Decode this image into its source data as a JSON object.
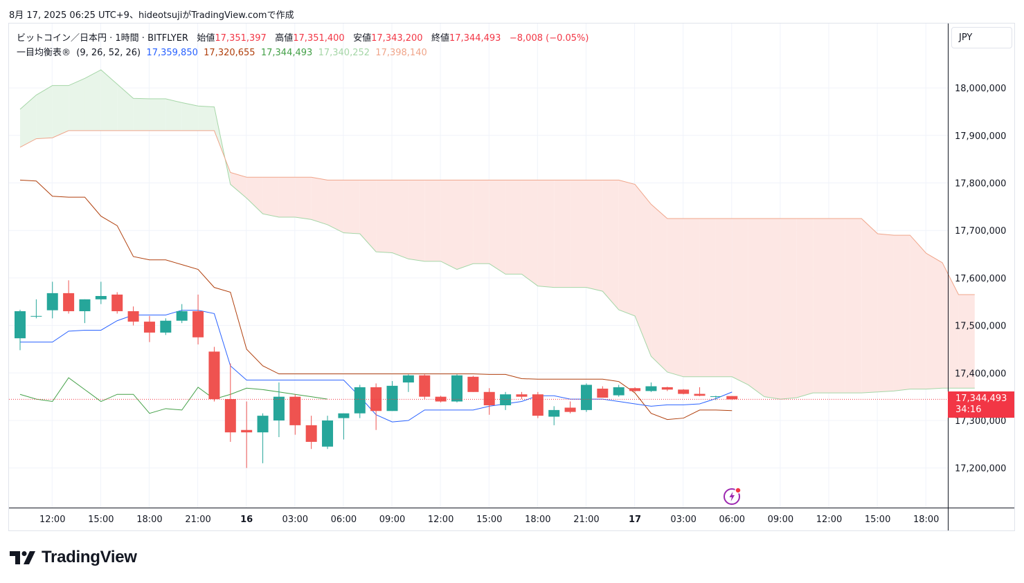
{
  "header": {
    "timestamp": "8月 17, 2025 06:25 UTC+9、hideotsujiがTradingView.comで作成"
  },
  "legend": {
    "symbol": "ビットコイン／日本円 · 1時間 · BITFLYER",
    "open_label": "始値",
    "open": "17,351,397",
    "high_label": "高値",
    "high": "17,351,400",
    "low_label": "安値",
    "low": "17,343,200",
    "close_label": "終値",
    "close": "17,344,493",
    "change": "−8,008 (−0.05%)",
    "indicator": "一目均衡表",
    "indicator_params": "(9, 26, 52, 26)",
    "conversion": "17,359,850",
    "base": "17,320,655",
    "lagging": "17,344,493",
    "span_a": "17,340,252",
    "span_b": "17,398,140"
  },
  "price_axis": {
    "currency": "JPY",
    "last_price": "17,344,493",
    "countdown": "34:16"
  },
  "brand": {
    "name": "TradingView"
  },
  "colors": {
    "up": "#26a69a",
    "down": "#ef5350",
    "conversion": "#2962ff",
    "base": "#b03f0c",
    "lagging": "#43a047",
    "span_a": "#a5d6a7",
    "span_b": "#f0a58a",
    "cloud_up": "#e8f5e9",
    "cloud_down": "#fde7e4"
  },
  "chart_data": {
    "type": "candlestick",
    "y_ticks": [
      17200000,
      17300000,
      17400000,
      17500000,
      17600000,
      17700000,
      17800000,
      17900000,
      18000000
    ],
    "x_ticks": [
      {
        "label": "12:00",
        "i": 2
      },
      {
        "label": "15:00",
        "i": 5
      },
      {
        "label": "18:00",
        "i": 8
      },
      {
        "label": "21:00",
        "i": 11
      },
      {
        "label": "16",
        "i": 14,
        "bold": true
      },
      {
        "label": "03:00",
        "i": 17
      },
      {
        "label": "06:00",
        "i": 20
      },
      {
        "label": "09:00",
        "i": 23
      },
      {
        "label": "12:00",
        "i": 26
      },
      {
        "label": "15:00",
        "i": 29
      },
      {
        "label": "18:00",
        "i": 32
      },
      {
        "label": "21:00",
        "i": 35
      },
      {
        "label": "17",
        "i": 38,
        "bold": true
      },
      {
        "label": "03:00",
        "i": 41
      },
      {
        "label": "06:00",
        "i": 44
      },
      {
        "label": "09:00",
        "i": 47
      },
      {
        "label": "12:00",
        "i": 50
      },
      {
        "label": "15:00",
        "i": 53
      },
      {
        "label": "18:00",
        "i": 56
      }
    ],
    "candles": [
      [
        17473000,
        17533000,
        17448000,
        17530000
      ],
      [
        17520000,
        17555000,
        17515000,
        17520000
      ],
      [
        17532000,
        17592000,
        17515000,
        17568000
      ],
      [
        17568000,
        17595000,
        17525000,
        17530000
      ],
      [
        17530000,
        17555000,
        17505000,
        17555000
      ],
      [
        17555000,
        17592000,
        17545000,
        17562000
      ],
      [
        17565000,
        17570000,
        17525000,
        17530000
      ],
      [
        17530000,
        17540000,
        17500000,
        17508000
      ],
      [
        17508000,
        17520000,
        17465000,
        17485000
      ],
      [
        17485000,
        17515000,
        17480000,
        17510000
      ],
      [
        17510000,
        17545000,
        17505000,
        17530000
      ],
      [
        17530000,
        17565000,
        17460000,
        17475000
      ],
      [
        17445000,
        17455000,
        17340000,
        17345000
      ],
      [
        17345000,
        17420000,
        17255000,
        17275000
      ],
      [
        17280000,
        17340000,
        17200000,
        17275000
      ],
      [
        17275000,
        17315000,
        17210000,
        17310000
      ],
      [
        17300000,
        17380000,
        17265000,
        17350000
      ],
      [
        17350000,
        17355000,
        17270000,
        17290000
      ],
      [
        17290000,
        17310000,
        17240000,
        17255000
      ],
      [
        17245000,
        17310000,
        17240000,
        17300000
      ],
      [
        17305000,
        17315000,
        17260000,
        17315000
      ],
      [
        17315000,
        17375000,
        17305000,
        17370000
      ],
      [
        17370000,
        17378000,
        17280000,
        17320000
      ],
      [
        17320000,
        17383000,
        17320000,
        17373000
      ],
      [
        17380000,
        17397000,
        17360000,
        17395000
      ],
      [
        17395000,
        17397000,
        17345000,
        17350000
      ],
      [
        17350000,
        17352000,
        17338000,
        17340000
      ],
      [
        17340000,
        17397000,
        17338000,
        17395000
      ],
      [
        17392000,
        17394000,
        17360000,
        17360000
      ],
      [
        17360000,
        17368000,
        17312000,
        17332000
      ],
      [
        17332000,
        17360000,
        17322000,
        17355000
      ],
      [
        17355000,
        17360000,
        17345000,
        17350000
      ],
      [
        17355000,
        17360000,
        17305000,
        17310000
      ],
      [
        17308000,
        17330000,
        17290000,
        17322000
      ],
      [
        17327000,
        17340000,
        17315000,
        17318000
      ],
      [
        17322000,
        17378000,
        17318000,
        17375000
      ],
      [
        17367000,
        17372000,
        17348000,
        17348000
      ],
      [
        17353000,
        17375000,
        17350000,
        17370000
      ],
      [
        17368000,
        17370000,
        17360000,
        17362000
      ],
      [
        17362000,
        17380000,
        17360000,
        17372000
      ],
      [
        17370000,
        17371000,
        17362000,
        17365000
      ],
      [
        17365000,
        17366000,
        17355000,
        17356000
      ],
      [
        17356000,
        17370000,
        17351000,
        17352000
      ],
      [
        17351000,
        17352000,
        17343000,
        17351000
      ],
      [
        17351400,
        17351400,
        17343200,
        17344493
      ]
    ],
    "conversion_line": {
      "start": 0,
      "values": [
        17465000,
        17465000,
        17465000,
        17488000,
        17490000,
        17490000,
        17510000,
        17522000,
        17522000,
        17522000,
        17532000,
        17532000,
        17525000,
        17415000,
        17385000,
        17385000,
        17385000,
        17385000,
        17385000,
        17385000,
        17385000,
        17350000,
        17312000,
        17297000,
        17300000,
        17322000,
        17322000,
        17322000,
        17322000,
        17330000,
        17335000,
        17340000,
        17352000,
        17352000,
        17345000,
        17345000,
        17345000,
        17340000,
        17335000,
        17330000,
        17333000,
        17333000,
        17335000,
        17346000,
        17359850
      ]
    },
    "base_line": {
      "start": 0,
      "values": [
        17806000,
        17804000,
        17772000,
        17770000,
        17770000,
        17730000,
        17710000,
        17645000,
        17638000,
        17638000,
        17628000,
        17618000,
        17580000,
        17570000,
        17450000,
        17415000,
        17398000,
        17398000,
        17398000,
        17398000,
        17398000,
        17398000,
        17398000,
        17398000,
        17398000,
        17398000,
        17398000,
        17398000,
        17398000,
        17397000,
        17397000,
        17388000,
        17387000,
        17387000,
        17387000,
        17387000,
        17387000,
        17382000,
        17358000,
        17315000,
        17302000,
        17305000,
        17322000,
        17322000,
        17320655
      ]
    },
    "lagging_line": {
      "start": 0,
      "values": [
        17355000,
        17345000,
        17340000,
        17390000,
        17365000,
        17340000,
        17355000,
        17355000,
        17315000,
        17325000,
        17322000,
        17370000,
        17345000,
        17355000,
        17368000,
        17365000,
        17360000,
        17355000,
        17350000,
        17345000
      ]
    },
    "span_a": {
      "start": 0,
      "values": [
        17955000,
        17985000,
        18005000,
        18005000,
        18020000,
        18038000,
        18008000,
        17978000,
        17977000,
        17977000,
        17969000,
        17962000,
        17960000,
        17797000,
        17768000,
        17735000,
        17728000,
        17728000,
        17723000,
        17712000,
        17695000,
        17693000,
        17655000,
        17653000,
        17640000,
        17635000,
        17635000,
        17618000,
        17630000,
        17630000,
        17608000,
        17608000,
        17583000,
        17580000,
        17580000,
        17580000,
        17572000,
        17533000,
        17520000,
        17435000,
        17402000,
        17392000,
        17392000,
        17392000,
        17392000,
        17375000,
        17350000,
        17345000,
        17348000,
        17358000,
        17358000,
        17358000,
        17358000,
        17360000,
        17362000,
        17366000,
        17366000,
        17368000,
        17368000,
        17368000
      ]
    },
    "span_b": {
      "start": 0,
      "values": [
        17875000,
        17893000,
        17895000,
        17910000,
        17910000,
        17910000,
        17910000,
        17910000,
        17910000,
        17910000,
        17910000,
        17910000,
        17910000,
        17822000,
        17812000,
        17812000,
        17812000,
        17812000,
        17812000,
        17806000,
        17806000,
        17806000,
        17806000,
        17806000,
        17806000,
        17806000,
        17806000,
        17806000,
        17806000,
        17806000,
        17806000,
        17806000,
        17806000,
        17806000,
        17806000,
        17806000,
        17806000,
        17806000,
        17797000,
        17755000,
        17725000,
        17725000,
        17725000,
        17725000,
        17725000,
        17725000,
        17725000,
        17725000,
        17725000,
        17725000,
        17725000,
        17725000,
        17725000,
        17693000,
        17690000,
        17690000,
        17652000,
        17632000,
        17565000,
        17565000
      ]
    },
    "last_price": 17344493
  }
}
